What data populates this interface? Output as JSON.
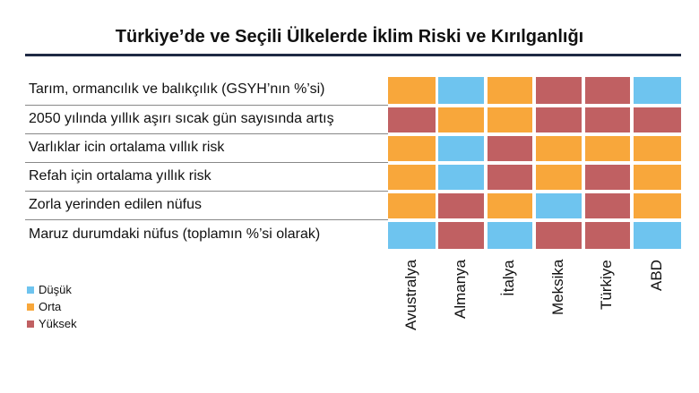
{
  "chart_data": {
    "type": "heatmap",
    "title": "Türkiye’de ve Seçili Ülkelerde İklim Riski ve Kırılganlığı",
    "rows": [
      "Tarım, ormancılık ve balıkçılık (GSYH’nın %’si)",
      "2050 yılında yıllık aşırı sıcak gün sayısında artış",
      "Varlıklar icin ortalama vıllık risk",
      "Refah için ortalama yıllık risk",
      "Zorla yerinden edilen nüfus",
      "Maruz durumdaki nüfus (toplamın %’si olarak)"
    ],
    "columns": [
      "Avustralya",
      "Almanya",
      "İtalya",
      "Meksika",
      "Türkiye",
      "ABD"
    ],
    "values": [
      [
        "Orta",
        "Düşük",
        "Orta",
        "Yüksek",
        "Yüksek",
        "Düşük"
      ],
      [
        "Yüksek",
        "Orta",
        "Orta",
        "Yüksek",
        "Yüksek",
        "Yüksek"
      ],
      [
        "Orta",
        "Düşük",
        "Yüksek",
        "Orta",
        "Orta",
        "Orta"
      ],
      [
        "Orta",
        "Düşük",
        "Yüksek",
        "Orta",
        "Yüksek",
        "Orta"
      ],
      [
        "Orta",
        "Yüksek",
        "Orta",
        "Düşük",
        "Yüksek",
        "Orta"
      ],
      [
        "Düşük",
        "Yüksek",
        "Düşük",
        "Yüksek",
        "Yüksek",
        "Düşük"
      ]
    ],
    "legend": [
      {
        "label": "Düşük",
        "color": "#6ec4ef"
      },
      {
        "label": "Orta",
        "color": "#f8a73b"
      },
      {
        "label": "Yüksek",
        "color": "#c06062"
      }
    ],
    "legend_position": "bottom-left"
  }
}
